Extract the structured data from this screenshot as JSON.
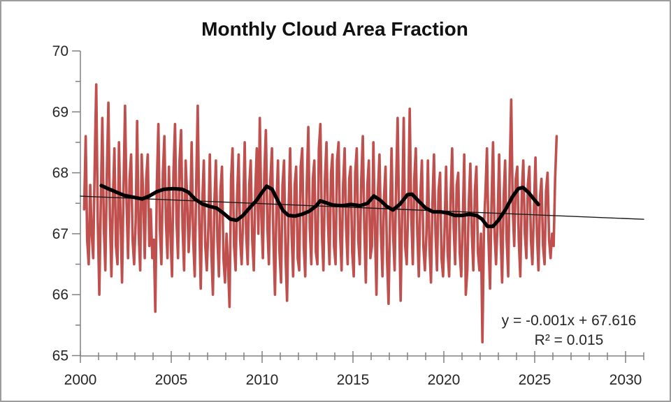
{
  "title": "Monthly Cloud Area Fraction",
  "annotation": {
    "equation": "y = -0.001x + 67.616",
    "r_squared": "R² = 0.015"
  },
  "colors": {
    "monthly_series": "#C0504D",
    "moving_average": "#000000",
    "trend_line": "#1a1a1a",
    "axis": "#808080",
    "tick_label": "#262626",
    "chart_border": "#9c9c9c"
  },
  "chart_data": {
    "type": "line",
    "title": "Monthly Cloud Area Fraction",
    "xlabel": "",
    "ylabel": "",
    "grid": false,
    "legend": "none",
    "x_axis": {
      "min": 2000,
      "max": 2031,
      "major_tick_values": [
        2000,
        2005,
        2010,
        2015,
        2020,
        2025,
        2030
      ],
      "minor_tick_step": 1
    },
    "y_axis": {
      "min": 65,
      "max": 70,
      "major_tick_values": [
        65,
        66,
        67,
        68,
        69,
        70
      ],
      "minor_tick_step": 0.5
    },
    "series": [
      {
        "id": "monthly-cloud-area-fraction",
        "color": "#C0504D",
        "width": 3.6,
        "start_x": 2000.2083,
        "x_step": 0.08333,
        "values": [
          67.4,
          68.6,
          66.9,
          66.5,
          67.8,
          67.0,
          66.6,
          68.2,
          69.45,
          67.2,
          66.0,
          67.5,
          68.9,
          67.1,
          66.4,
          68.0,
          69.15,
          67.3,
          66.3,
          67.6,
          68.4,
          66.8,
          66.5,
          68.5,
          67.3,
          66.2,
          67.7,
          69.1,
          67.5,
          66.6,
          67.9,
          68.3,
          66.9,
          66.5,
          67.2,
          68.85,
          67.0,
          66.4,
          68.3,
          67.6,
          66.6,
          67.9,
          68.3,
          66.8,
          67.4,
          66.6,
          66.9,
          65.72,
          67.8,
          68.8,
          67.1,
          66.5,
          68.0,
          68.6,
          67.2,
          66.6,
          68.1,
          67.0,
          66.3,
          68.0,
          68.8,
          67.2,
          66.6,
          68.2,
          68.7,
          67.1,
          66.4,
          68.2,
          67.6,
          66.7,
          67.3,
          68.5,
          66.9,
          66.3,
          67.8,
          69.1,
          67.2,
          66.1,
          67.5,
          68.2,
          66.8,
          66.4,
          67.1,
          68.3,
          66.7,
          66.0,
          67.5,
          68.2,
          66.9,
          66.3,
          67.7,
          68.1,
          66.6,
          66.2,
          67.0,
          66.5,
          65.8,
          67.9,
          68.4,
          66.8,
          66.4,
          67.6,
          68.3,
          66.9,
          66.5,
          67.3,
          68.5,
          67.0,
          66.5,
          67.8,
          68.2,
          66.9,
          66.4,
          67.7,
          68.4,
          67.0,
          68.9,
          67.3,
          66.6,
          68.0,
          68.7,
          67.1,
          66.5,
          67.9,
          68.4,
          66.9,
          66.0,
          67.5,
          68.2,
          66.7,
          66.2,
          67.8,
          68.2,
          66.6,
          65.9,
          67.4,
          68.4,
          67.0,
          66.3,
          67.8,
          68.1,
          66.6,
          66.4,
          68.1,
          68.4,
          66.8,
          66.3,
          67.8,
          68.75,
          67.1,
          66.5,
          67.9,
          68.2,
          66.7,
          66.5,
          68.4,
          68.8,
          67.0,
          66.4,
          67.9,
          68.5,
          67.2,
          66.5,
          68.0,
          68.3,
          66.8,
          66.5,
          68.2,
          68.5,
          67.0,
          66.4,
          67.8,
          68.4,
          67.1,
          66.5,
          67.9,
          68.1,
          66.7,
          66.3,
          68.0,
          68.4,
          66.9,
          66.5,
          67.9,
          68.6,
          67.1,
          66.2,
          67.8,
          68.2,
          66.6,
          66.8,
          68.5,
          67.1,
          66.0,
          67.7,
          68.3,
          67.0,
          66.3,
          67.6,
          68.1,
          66.6,
          65.85,
          67.3,
          68.4,
          67.0,
          66.4,
          67.8,
          68.9,
          67.2,
          65.9,
          67.4,
          68.9,
          66.8,
          66.5,
          67.5,
          69.05,
          67.3,
          66.5,
          67.9,
          68.4,
          67.0,
          66.3,
          67.6,
          68.2,
          66.8,
          66.4,
          67.0,
          68.2,
          66.8,
          66.2,
          67.5,
          68.3,
          67.0,
          66.4,
          67.7,
          68.0,
          66.6,
          66.3,
          67.1,
          68.1,
          66.7,
          66.3,
          67.6,
          68.4,
          67.1,
          66.5,
          67.8,
          68.0,
          66.7,
          66.3,
          67.2,
          68.3,
          66.0,
          66.4,
          67.5,
          68.15,
          67.0,
          66.4,
          67.7,
          68.1,
          66.7,
          66.4,
          67.0,
          65.22,
          67.1,
          67.7,
          68.4,
          66.9,
          66.1,
          67.5,
          68.5,
          67.0,
          66.5,
          67.2,
          68.3,
          67.0,
          66.2,
          67.6,
          68.2,
          66.9,
          66.3,
          68.0,
          69.2,
          67.4,
          66.8,
          67.9,
          68.1,
          66.9,
          66.3,
          67.7,
          68.2,
          67.0,
          66.6,
          67.8,
          68.1,
          66.9,
          66.5,
          67.4,
          68.25,
          67.0,
          66.4,
          67.6,
          67.9,
          66.8,
          66.5,
          67.7,
          68.0,
          66.9,
          66.6,
          67.0,
          66.8,
          67.9,
          68.6
        ]
      },
      {
        "id": "moving-average-12-month",
        "color": "#000000",
        "width": 5.2,
        "points": [
          [
            2001.15,
            67.79
          ],
          [
            2001.6,
            67.73
          ],
          [
            2002.0,
            67.68
          ],
          [
            2002.4,
            67.63
          ],
          [
            2002.9,
            67.6
          ],
          [
            2003.4,
            67.57
          ],
          [
            2003.8,
            67.62
          ],
          [
            2004.2,
            67.69
          ],
          [
            2004.6,
            67.73
          ],
          [
            2005.1,
            67.74
          ],
          [
            2005.6,
            67.73
          ],
          [
            2005.95,
            67.68
          ],
          [
            2006.3,
            67.57
          ],
          [
            2006.7,
            67.49
          ],
          [
            2007.1,
            67.45
          ],
          [
            2007.5,
            67.42
          ],
          [
            2007.9,
            67.33
          ],
          [
            2008.25,
            67.24
          ],
          [
            2008.6,
            67.22
          ],
          [
            2008.95,
            67.3
          ],
          [
            2009.3,
            67.42
          ],
          [
            2009.7,
            67.55
          ],
          [
            2010.0,
            67.68
          ],
          [
            2010.25,
            67.78
          ],
          [
            2010.55,
            67.73
          ],
          [
            2010.85,
            67.55
          ],
          [
            2011.15,
            67.38
          ],
          [
            2011.45,
            67.3
          ],
          [
            2011.8,
            67.29
          ],
          [
            2012.2,
            67.32
          ],
          [
            2012.6,
            67.37
          ],
          [
            2012.95,
            67.45
          ],
          [
            2013.2,
            67.54
          ],
          [
            2013.5,
            67.51
          ],
          [
            2013.9,
            67.47
          ],
          [
            2014.4,
            67.46
          ],
          [
            2014.9,
            67.48
          ],
          [
            2015.4,
            67.46
          ],
          [
            2015.8,
            67.5
          ],
          [
            2016.15,
            67.62
          ],
          [
            2016.5,
            67.55
          ],
          [
            2016.85,
            67.45
          ],
          [
            2017.2,
            67.39
          ],
          [
            2017.6,
            67.49
          ],
          [
            2018.0,
            67.64
          ],
          [
            2018.25,
            67.65
          ],
          [
            2018.6,
            67.54
          ],
          [
            2019.0,
            67.42
          ],
          [
            2019.4,
            67.36
          ],
          [
            2019.8,
            67.36
          ],
          [
            2020.2,
            67.34
          ],
          [
            2020.6,
            67.3
          ],
          [
            2021.0,
            67.3
          ],
          [
            2021.4,
            67.32
          ],
          [
            2021.8,
            67.3
          ],
          [
            2022.1,
            67.24
          ],
          [
            2022.4,
            67.12
          ],
          [
            2022.7,
            67.12
          ],
          [
            2023.0,
            67.22
          ],
          [
            2023.4,
            67.4
          ],
          [
            2023.8,
            67.62
          ],
          [
            2024.1,
            67.74
          ],
          [
            2024.35,
            67.76
          ],
          [
            2024.65,
            67.68
          ],
          [
            2024.95,
            67.57
          ],
          [
            2025.2,
            67.48
          ]
        ]
      },
      {
        "id": "linear-trend",
        "color": "#1a1a1a",
        "width": 1.4,
        "points": [
          [
            2000,
            67.616
          ],
          [
            2031,
            67.237
          ]
        ]
      }
    ],
    "annotations": [
      "y = -0.001x + 67.616",
      "R² = 0.015"
    ]
  }
}
